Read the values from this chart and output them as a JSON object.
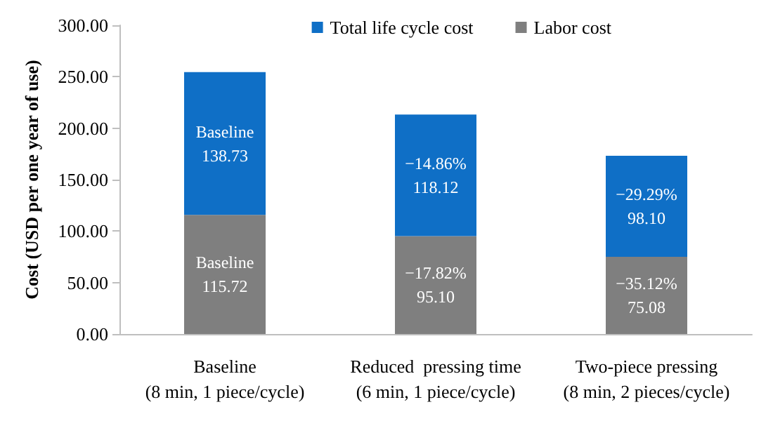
{
  "chart_data": {
    "type": "bar",
    "stacked": true,
    "ylabel": "Cost (USD per one year of use)",
    "categories": [
      "Baseline\n(8 min, 1 piece/cycle)",
      "Reduced  pressing time\n(6 min, 1 piece/cycle)",
      "Two-piece pressing\n(8 min, 2 pieces/cycle)"
    ],
    "series": [
      {
        "name": "Labor cost",
        "color": "#7f7f7f",
        "values": [
          115.72,
          95.1,
          75.08
        ],
        "value_labels": [
          "Baseline\n115.72",
          "−17.82%\n95.10",
          "−35.12%\n75.08"
        ]
      },
      {
        "name": "Total life cycle cost",
        "color": "#0f6fc6",
        "values": [
          138.73,
          118.12,
          98.1
        ],
        "value_labels": [
          "Baseline\n138.73",
          "−14.86%\n118.12",
          "−29.29%\n98.10"
        ]
      }
    ],
    "ylim": [
      0,
      300
    ],
    "yticks": [
      {
        "value": 0,
        "label": "0.00"
      },
      {
        "value": 50,
        "label": "50.00"
      },
      {
        "value": 100,
        "label": "100.00"
      },
      {
        "value": 150,
        "label": "150.00"
      },
      {
        "value": 200,
        "label": "200.00"
      },
      {
        "value": 250,
        "label": "250.00"
      },
      {
        "value": 300,
        "label": "300.00"
      }
    ],
    "grid": false,
    "legend": "top right"
  }
}
